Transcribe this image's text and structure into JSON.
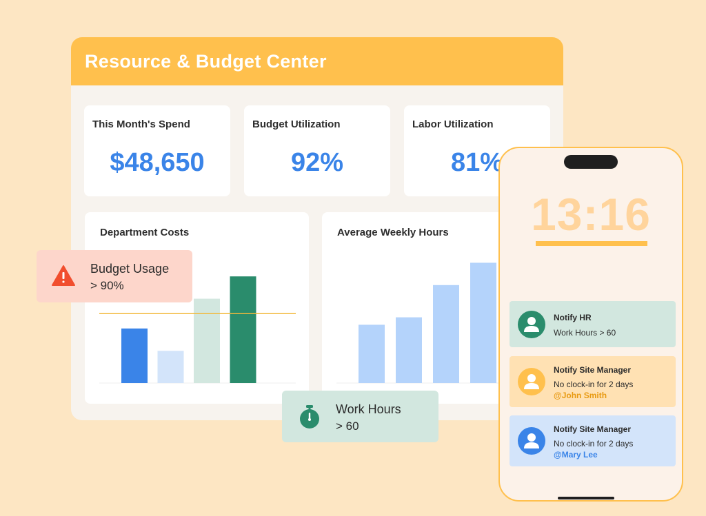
{
  "dashboard": {
    "title": "Resource & Budget Center",
    "kpis": [
      {
        "label": "This Month's Spend",
        "value": "$48,650"
      },
      {
        "label": "Budget Utilization",
        "value": "92%"
      },
      {
        "label": "Labor Utilization",
        "value": "81%"
      }
    ]
  },
  "alerts": {
    "budget": {
      "line1": "Budget Usage",
      "line2": "> 90%",
      "icon": "warning-icon"
    },
    "hours": {
      "line1": "Work Hours",
      "line2": "> 60",
      "icon": "stopwatch-icon"
    }
  },
  "phone": {
    "time": "13:16",
    "notifications": [
      {
        "title": "Notify HR",
        "text": "Work Hours > 60",
        "mention": "",
        "color": "#D2E7DF",
        "avatar": "#2A8C6C"
      },
      {
        "title": "Notify Site Manager",
        "text": "No clock-in for 2 days",
        "mention": "@John Smith",
        "color": "#FFE1B3",
        "avatar": "#FFC04D",
        "mention_color": "#E89A12"
      },
      {
        "title": "Notify Site Manager",
        "text": "No clock-in for 2 days",
        "mention": "@Mary Lee",
        "color": "#D3E4FA",
        "avatar": "#3A84E8",
        "mention_color": "#3A84E8"
      }
    ]
  },
  "chart_data": [
    {
      "type": "bar",
      "title": "Department Costs",
      "values": [
        44,
        26,
        68,
        86
      ],
      "colors": [
        "#3A84E8",
        "#D3E4FA",
        "#D2E7DF",
        "#2A8C6C"
      ],
      "threshold": 56,
      "ylim": [
        0,
        100
      ]
    },
    {
      "type": "bar",
      "title": "Average Weekly Hours",
      "values": [
        47,
        53,
        79,
        97
      ],
      "colors": [
        "#B4D3FB",
        "#B4D3FB",
        "#B4D3FB",
        "#B4D3FB"
      ],
      "ylim": [
        0,
        100
      ]
    }
  ],
  "colors": {
    "accent": "#FFC04D",
    "primary_blue": "#3A84E8",
    "green": "#2A8C6C",
    "background": "#FDE6C3"
  }
}
